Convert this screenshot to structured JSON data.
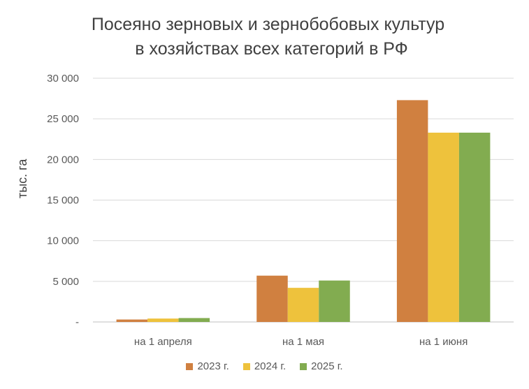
{
  "chart_data": {
    "type": "bar",
    "title": [
      "Посеяно зерновых и зернобобовых культур",
      "в хозяйствах всех категорий в РФ"
    ],
    "ylabel": "тыс. га",
    "xlabel": "",
    "categories": [
      "на 1 апреля",
      "на 1 мая",
      "на 1 июня"
    ],
    "series": [
      {
        "name": "2023 г.",
        "color": "#D08040",
        "values": [
          300,
          5700,
          27300
        ]
      },
      {
        "name": "2024 г.",
        "color": "#EEC23C",
        "values": [
          420,
          4200,
          23300
        ]
      },
      {
        "name": "2025 г.",
        "color": "#82AC50",
        "values": [
          480,
          5100,
          23300
        ]
      }
    ],
    "ylim": [
      0,
      30000
    ],
    "yticks": [
      0,
      5000,
      10000,
      15000,
      20000,
      25000,
      30000
    ],
    "ytick_labels": [
      "-",
      "5 000",
      "10 000",
      "15 000",
      "20 000",
      "25 000",
      "30 000"
    ],
    "grid": true,
    "legend": "bottom",
    "gridline_color": "#D9D9D9"
  }
}
